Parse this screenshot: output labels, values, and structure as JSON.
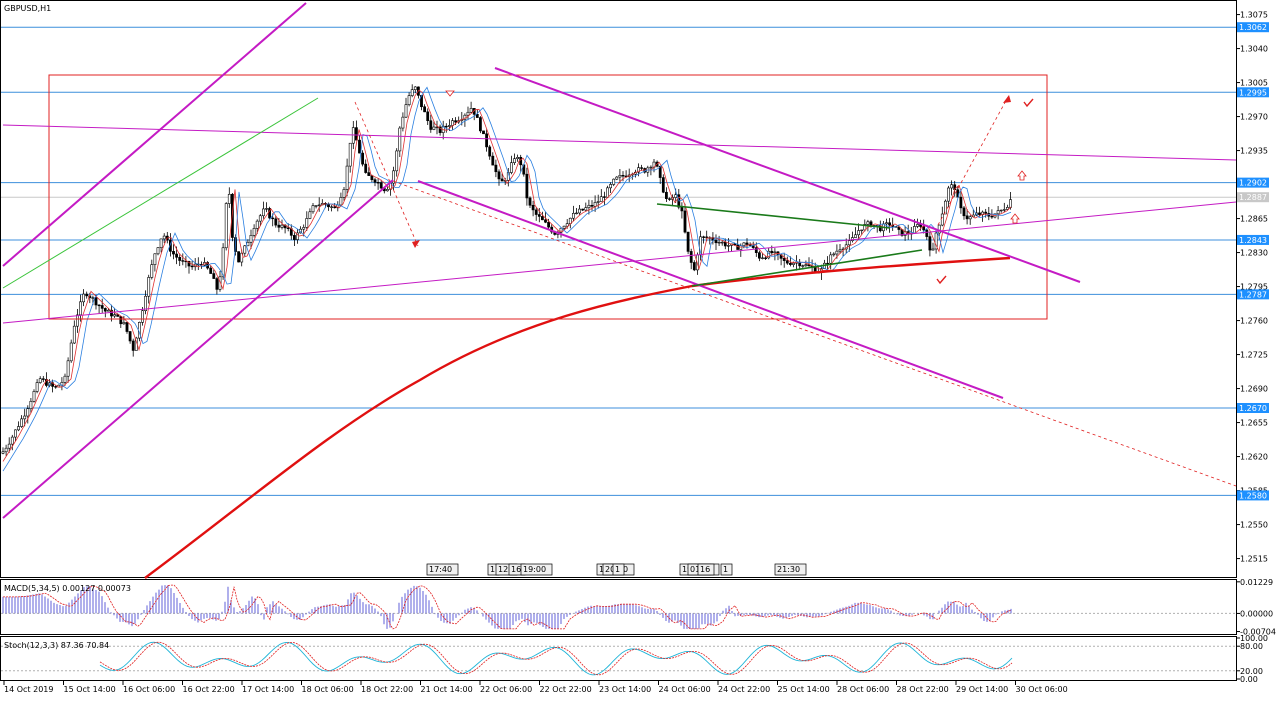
{
  "window": {
    "symbol": "GBPUSD,H1",
    "macd_label": "MACD(5,34,5) 0.00127 0.00073",
    "stoch_label": "Stoch(12,3,3) 87.36 70.84"
  },
  "colors": {
    "grid_frame": "#000000",
    "hline": "#3d8fdc",
    "hline_label_bg": "#1e90ff",
    "channel": "#c41bc4",
    "box": "#e02020",
    "ma200": "#e01010",
    "ema_fast": "#e03030",
    "ema_slow": "#2a7fe0",
    "triangle": "#1a7a1a",
    "arrow": "#e02020",
    "macd_hist": "#3a3ad0",
    "macd_signal": "#e02020",
    "stoch_main": "#1fb5d8",
    "stoch_signal": "#e02020"
  },
  "chart_data": [
    {
      "type": "candlestick",
      "title": "GBPUSD,H1",
      "y_axis_ticks": [
        "1.3075",
        "1.3040",
        "1.3005",
        "1.2970",
        "1.2935",
        "1.2900",
        "1.2865",
        "1.2830",
        "1.2795",
        "1.2760",
        "1.2725",
        "1.2690",
        "1.2655",
        "1.2620",
        "1.2585",
        "1.2550",
        "1.2515"
      ],
      "ylim": [
        1.2495,
        1.309
      ],
      "horizontal_levels": [
        "1.3062",
        "1.2995",
        "1.2902",
        "1.2843",
        "1.2787",
        "1.2670",
        "1.2580"
      ],
      "current_price": "1.2887",
      "x_axis_ticks": [
        "14 Oct 2019",
        "15 Oct 14:00",
        "16 Oct 06:00",
        "16 Oct 22:00",
        "17 Oct 14:00",
        "18 Oct 06:00",
        "18 Oct 22:00",
        "21 Oct 14:00",
        "22 Oct 06:00",
        "22 Oct 22:00",
        "23 Oct 14:00",
        "24 Oct 06:00",
        "24 Oct 22:00",
        "25 Oct 14:00",
        "28 Oct 06:00",
        "28 Oct 22:00",
        "29 Oct 14:00",
        "30 Oct 06:00"
      ],
      "time_markers": [
        "17:40",
        "1",
        "12:",
        "16",
        "19:00",
        "16",
        "20:00",
        "1",
        "19:00",
        "01:00",
        "16",
        "1",
        "21:30"
      ],
      "close_path": [
        [
          0,
          1.262
        ],
        [
          12,
          1.264
        ],
        [
          25,
          1.2665
        ],
        [
          40,
          1.27
        ],
        [
          55,
          1.269
        ],
        [
          65,
          1.27
        ],
        [
          75,
          1.276
        ],
        [
          85,
          1.279
        ],
        [
          95,
          1.278
        ],
        [
          105,
          1.277
        ],
        [
          115,
          1.2765
        ],
        [
          125,
          1.2755
        ],
        [
          133,
          1.273
        ],
        [
          140,
          1.276
        ],
        [
          148,
          1.28
        ],
        [
          155,
          1.283
        ],
        [
          163,
          1.285
        ],
        [
          172,
          1.283
        ],
        [
          182,
          1.282
        ],
        [
          192,
          1.2815
        ],
        [
          202,
          1.282
        ],
        [
          210,
          1.281
        ],
        [
          218,
          1.279
        ],
        [
          224,
          1.284
        ],
        [
          228,
          1.291
        ],
        [
          232,
          1.285
        ],
        [
          238,
          1.282
        ],
        [
          245,
          1.2835
        ],
        [
          255,
          1.286
        ],
        [
          265,
          1.2875
        ],
        [
          275,
          1.286
        ],
        [
          285,
          1.2855
        ],
        [
          295,
          1.2845
        ],
        [
          305,
          1.286
        ],
        [
          315,
          1.288
        ],
        [
          325,
          1.288
        ],
        [
          335,
          1.2875
        ],
        [
          345,
          1.29
        ],
        [
          352,
          1.296
        ],
        [
          358,
          1.294
        ],
        [
          365,
          1.291
        ],
        [
          375,
          1.2905
        ],
        [
          385,
          1.2895
        ],
        [
          390,
          1.29
        ],
        [
          395,
          1.292
        ],
        [
          400,
          1.296
        ],
        [
          408,
          1.299
        ],
        [
          415,
          1.3
        ],
        [
          422,
          1.298
        ],
        [
          430,
          1.296
        ],
        [
          440,
          1.2955
        ],
        [
          452,
          1.2965
        ],
        [
          462,
          1.297
        ],
        [
          472,
          1.298
        ],
        [
          478,
          1.2965
        ],
        [
          485,
          1.2945
        ],
        [
          492,
          1.2925
        ],
        [
          500,
          1.29
        ],
        [
          508,
          1.291
        ],
        [
          515,
          1.293
        ],
        [
          522,
          1.292
        ],
        [
          528,
          1.288
        ],
        [
          535,
          1.287
        ],
        [
          545,
          1.286
        ],
        [
          555,
          1.285
        ],
        [
          565,
          1.286
        ],
        [
          575,
          1.287
        ],
        [
          585,
          1.2875
        ],
        [
          595,
          1.288
        ],
        [
          605,
          1.289
        ],
        [
          615,
          1.2905
        ],
        [
          625,
          1.291
        ],
        [
          635,
          1.2915
        ],
        [
          645,
          1.2915
        ],
        [
          655,
          1.2925
        ],
        [
          660,
          1.2905
        ],
        [
          668,
          1.288
        ],
        [
          675,
          1.289
        ],
        [
          682,
          1.287
        ],
        [
          688,
          1.283
        ],
        [
          694,
          1.281
        ],
        [
          700,
          1.2845
        ],
        [
          710,
          1.2845
        ],
        [
          722,
          1.284
        ],
        [
          735,
          1.2835
        ],
        [
          748,
          1.284
        ],
        [
          760,
          1.2825
        ],
        [
          772,
          1.283
        ],
        [
          785,
          1.282
        ],
        [
          798,
          1.282
        ],
        [
          810,
          1.2815
        ],
        [
          820,
          1.281
        ],
        [
          830,
          1.2825
        ],
        [
          840,
          1.2835
        ],
        [
          850,
          1.284
        ],
        [
          860,
          1.2855
        ],
        [
          870,
          1.286
        ],
        [
          880,
          1.2855
        ],
        [
          890,
          1.286
        ],
        [
          900,
          1.285
        ],
        [
          910,
          1.285
        ],
        [
          920,
          1.286
        ],
        [
          928,
          1.2845
        ],
        [
          932,
          1.2825
        ],
        [
          936,
          1.285
        ],
        [
          942,
          1.287
        ],
        [
          948,
          1.2895
        ],
        [
          954,
          1.29
        ],
        [
          960,
          1.2875
        ],
        [
          968,
          1.2865
        ],
        [
          978,
          1.287
        ],
        [
          990,
          1.2868
        ],
        [
          1000,
          1.2872
        ],
        [
          1008,
          1.288
        ],
        [
          1012,
          1.2887
        ]
      ]
    },
    {
      "type": "bar",
      "title": "MACD(5,34,5) 0.00127 0.00073",
      "y_axis_ticks": [
        "0.01229",
        "0.00000",
        "-0.00704"
      ],
      "ylim": [
        -0.008,
        0.013
      ]
    },
    {
      "type": "line",
      "title": "Stoch(12,3,3) 87.36 70.84",
      "y_axis_ticks": [
        "100.00",
        "80.00",
        "20.00",
        "0.00"
      ],
      "ylim": [
        0,
        100
      ]
    }
  ]
}
